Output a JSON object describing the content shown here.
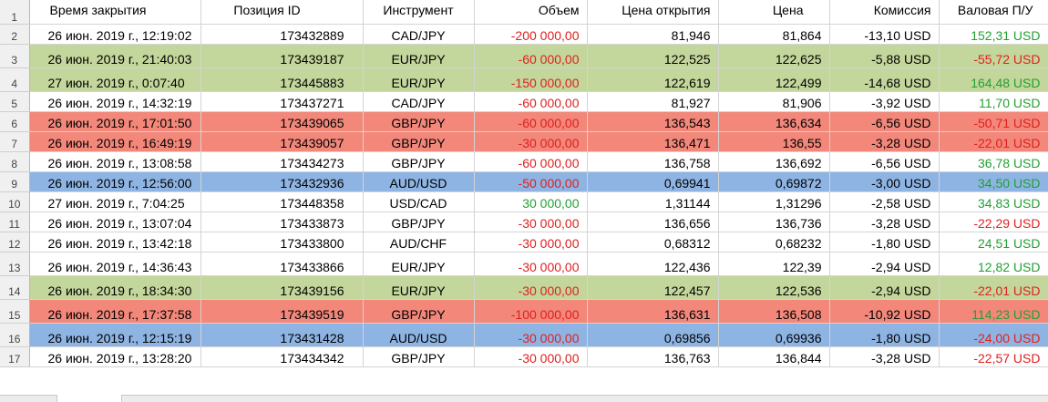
{
  "headers": {
    "rownum": "1",
    "close_time": "Время закрытия",
    "position_id": "Позиция ID",
    "instrument": "Инструмент",
    "volume": "Объем",
    "open_price": "Цена открытия",
    "price": "Цена",
    "commission": "Комиссия",
    "gross_pl": "Валовая П/У"
  },
  "colors": {
    "green_row": "#c3d69b",
    "red_row": "#f2877a",
    "blue_row": "#8eb4e3",
    "negative_text": "#e0201f",
    "positive_text": "#23a032"
  },
  "rows": [
    {
      "num": "2",
      "highlight": "none",
      "close_time": "26 июн. 2019 г., 12:19:02",
      "position_id": "173432889",
      "instrument": "CAD/JPY",
      "volume": "-200 000,00",
      "volume_sign": "neg",
      "open_price": "81,946",
      "price": "81,864",
      "commission": "-13,10 USD",
      "gross_pl": "152,31 USD",
      "pl_sign": "pos"
    },
    {
      "num": "3",
      "highlight": "green",
      "close_time": "26 июн. 2019 г., 21:40:03",
      "position_id": "173439187",
      "instrument": "EUR/JPY",
      "volume": "-60 000,00",
      "volume_sign": "neg",
      "open_price": "122,525",
      "price": "122,625",
      "commission": "-5,88 USD",
      "gross_pl": "-55,72 USD",
      "pl_sign": "neg"
    },
    {
      "num": "4",
      "highlight": "green",
      "close_time": "27 июн. 2019 г., 0:07:40",
      "position_id": "173445883",
      "instrument": "EUR/JPY",
      "volume": "-150 000,00",
      "volume_sign": "neg",
      "open_price": "122,619",
      "price": "122,499",
      "commission": "-14,68 USD",
      "gross_pl": "164,48 USD",
      "pl_sign": "pos"
    },
    {
      "num": "5",
      "highlight": "none",
      "close_time": "26 июн. 2019 г., 14:32:19",
      "position_id": "173437271",
      "instrument": "CAD/JPY",
      "volume": "-60 000,00",
      "volume_sign": "neg",
      "open_price": "81,927",
      "price": "81,906",
      "commission": "-3,92 USD",
      "gross_pl": "11,70 USD",
      "pl_sign": "pos"
    },
    {
      "num": "6",
      "highlight": "red",
      "close_time": "26 июн. 2019 г., 17:01:50",
      "position_id": "173439065",
      "instrument": "GBP/JPY",
      "volume": "-60 000,00",
      "volume_sign": "neg",
      "open_price": "136,543",
      "price": "136,634",
      "commission": "-6,56 USD",
      "gross_pl": "-50,71 USD",
      "pl_sign": "neg"
    },
    {
      "num": "7",
      "highlight": "red",
      "close_time": "26 июн. 2019 г., 16:49:19",
      "position_id": "173439057",
      "instrument": "GBP/JPY",
      "volume": "-30 000,00",
      "volume_sign": "neg",
      "open_price": "136,471",
      "price": "136,55",
      "commission": "-3,28 USD",
      "gross_pl": "-22,01 USD",
      "pl_sign": "neg"
    },
    {
      "num": "8",
      "highlight": "none",
      "close_time": "26 июн. 2019 г., 13:08:58",
      "position_id": "173434273",
      "instrument": "GBP/JPY",
      "volume": "-60 000,00",
      "volume_sign": "neg",
      "open_price": "136,758",
      "price": "136,692",
      "commission": "-6,56 USD",
      "gross_pl": "36,78 USD",
      "pl_sign": "pos"
    },
    {
      "num": "9",
      "highlight": "blue",
      "close_time": "26 июн. 2019 г., 12:56:00",
      "position_id": "173432936",
      "instrument": "AUD/USD",
      "volume": "-50 000,00",
      "volume_sign": "neg",
      "open_price": "0,69941",
      "price": "0,69872",
      "commission": "-3,00 USD",
      "gross_pl": "34,50 USD",
      "pl_sign": "pos"
    },
    {
      "num": "10",
      "highlight": "none",
      "close_time": "27 июн. 2019 г., 7:04:25",
      "position_id": "173448358",
      "instrument": "USD/CAD",
      "volume": "30 000,00",
      "volume_sign": "pos",
      "open_price": "1,31144",
      "price": "1,31296",
      "commission": "-2,58 USD",
      "gross_pl": "34,83 USD",
      "pl_sign": "pos"
    },
    {
      "num": "11",
      "highlight": "none",
      "close_time": "26 июн. 2019 г., 13:07:04",
      "position_id": "173433873",
      "instrument": "GBP/JPY",
      "volume": "-30 000,00",
      "volume_sign": "neg",
      "open_price": "136,656",
      "price": "136,736",
      "commission": "-3,28 USD",
      "gross_pl": "-22,29 USD",
      "pl_sign": "neg"
    },
    {
      "num": "12",
      "highlight": "none",
      "close_time": "26 июн. 2019 г., 13:42:18",
      "position_id": "173433800",
      "instrument": "AUD/CHF",
      "volume": "-30 000,00",
      "volume_sign": "neg",
      "open_price": "0,68312",
      "price": "0,68232",
      "commission": "-1,80 USD",
      "gross_pl": "24,51 USD",
      "pl_sign": "pos"
    },
    {
      "num": "13",
      "highlight": "none",
      "close_time": "26 июн. 2019 г., 14:36:43",
      "position_id": "173433866",
      "instrument": "EUR/JPY",
      "volume": "-30 000,00",
      "volume_sign": "neg",
      "open_price": "122,436",
      "price": "122,39",
      "commission": "-2,94 USD",
      "gross_pl": "12,82 USD",
      "pl_sign": "pos"
    },
    {
      "num": "14",
      "highlight": "green",
      "close_time": "26 июн. 2019 г., 18:34:30",
      "position_id": "173439156",
      "instrument": "EUR/JPY",
      "volume": "-30 000,00",
      "volume_sign": "neg",
      "open_price": "122,457",
      "price": "122,536",
      "commission": "-2,94 USD",
      "gross_pl": "-22,01 USD",
      "pl_sign": "neg"
    },
    {
      "num": "15",
      "highlight": "red",
      "close_time": "26 июн. 2019 г., 17:37:58",
      "position_id": "173439519",
      "instrument": "GBP/JPY",
      "volume": "-100 000,00",
      "volume_sign": "neg",
      "open_price": "136,631",
      "price": "136,508",
      "commission": "-10,92 USD",
      "gross_pl": "114,23 USD",
      "pl_sign": "pos"
    },
    {
      "num": "16",
      "highlight": "blue",
      "close_time": "26 июн. 2019 г., 12:15:19",
      "position_id": "173431428",
      "instrument": "AUD/USD",
      "volume": "-30 000,00",
      "volume_sign": "neg",
      "open_price": "0,69856",
      "price": "0,69936",
      "commission": "-1,80 USD",
      "gross_pl": "-24,00 USD",
      "pl_sign": "neg"
    },
    {
      "num": "17",
      "highlight": "none",
      "close_time": "26 июн. 2019 г., 13:28:20",
      "position_id": "173434342",
      "instrument": "GBP/JPY",
      "volume": "-30 000,00",
      "volume_sign": "neg",
      "open_price": "136,763",
      "price": "136,844",
      "commission": "-3,28 USD",
      "gross_pl": "-22,57 USD",
      "pl_sign": "neg"
    }
  ]
}
